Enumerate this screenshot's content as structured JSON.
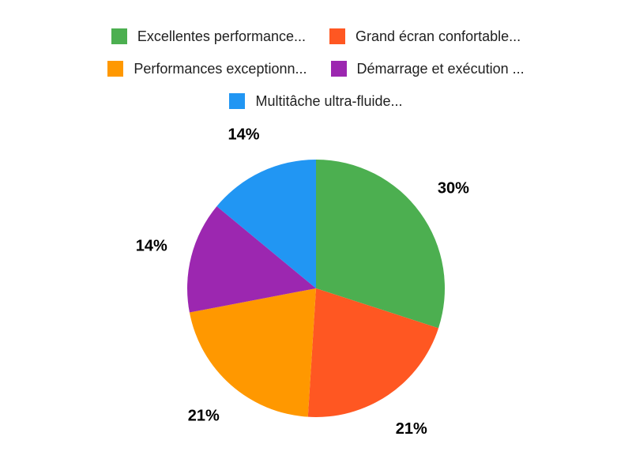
{
  "chart_data": {
    "type": "pie",
    "title": "",
    "legend_position": "top",
    "start_angle_deg": 0,
    "direction": "clockwise",
    "background_color": "#FFFFFF",
    "label_text_color": "#000000",
    "legend_text_color": "#212121",
    "slices": [
      {
        "label": "Excellentes performance...",
        "value": 30,
        "pct_label": "30%",
        "color": "#4CAF50"
      },
      {
        "label": "Grand écran confortable...",
        "value": 21,
        "pct_label": "21%",
        "color": "#FF5722"
      },
      {
        "label": "Performances exceptionn...",
        "value": 21,
        "pct_label": "21%",
        "color": "#FF9800"
      },
      {
        "label": "Démarrage et exécution ...",
        "value": 14,
        "pct_label": "14%",
        "color": "#9C27B0"
      },
      {
        "label": "Multitâche ultra-fluide...",
        "value": 14,
        "pct_label": "14%",
        "color": "#2196F3"
      }
    ],
    "legend_rows": [
      [
        0,
        1
      ],
      [
        2,
        3
      ],
      [
        4
      ]
    ]
  }
}
